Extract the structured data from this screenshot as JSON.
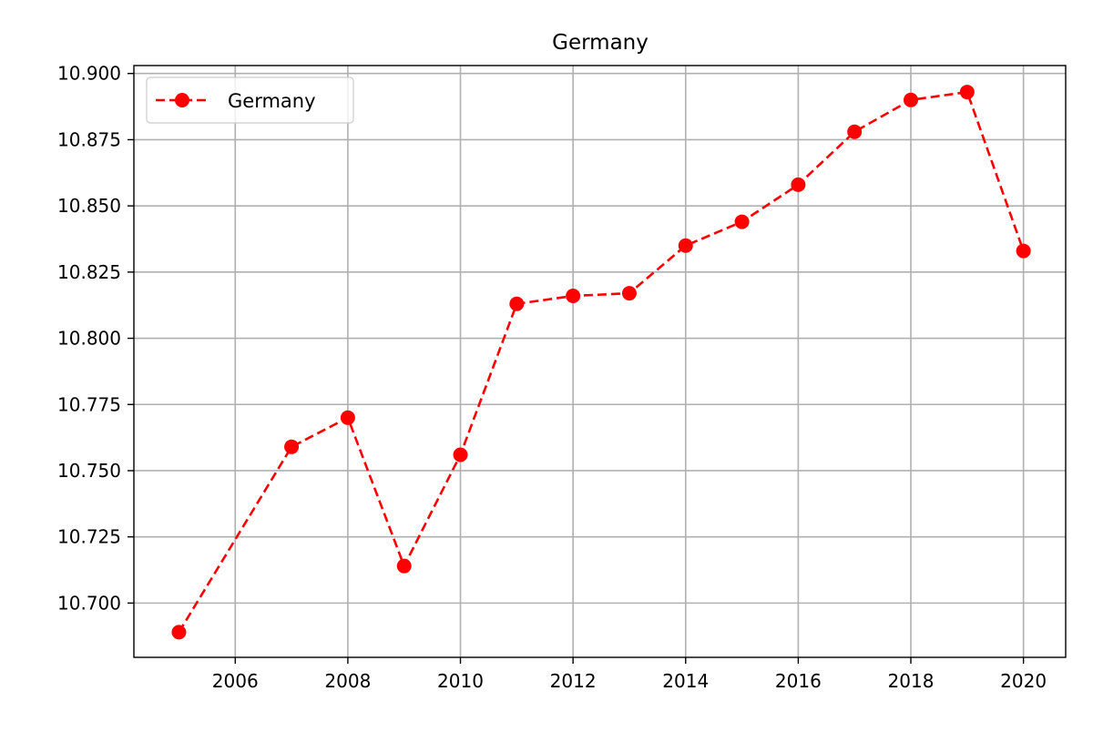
{
  "chart_data": {
    "type": "line",
    "title": "Germany",
    "xlabel": "",
    "ylabel": "",
    "x": [
      2005,
      2007,
      2008,
      2009,
      2010,
      2011,
      2012,
      2013,
      2014,
      2015,
      2016,
      2017,
      2018,
      2019,
      2020
    ],
    "series": [
      {
        "name": "Germany",
        "color": "#ff0000",
        "line_style": "dashed",
        "marker": "circle",
        "values": [
          10.689,
          10.759,
          10.77,
          10.714,
          10.756,
          10.813,
          10.816,
          10.817,
          10.835,
          10.844,
          10.858,
          10.878,
          10.89,
          10.893,
          10.833
        ]
      }
    ],
    "xlim": [
      2004.2,
      2020.75
    ],
    "ylim": [
      10.6795,
      10.903
    ],
    "x_ticks": [
      "2006",
      "2008",
      "2010",
      "2012",
      "2014",
      "2016",
      "2018",
      "2020"
    ],
    "y_ticks": [
      "10.700",
      "10.725",
      "10.750",
      "10.775",
      "10.800",
      "10.825",
      "10.850",
      "10.875",
      "10.900"
    ],
    "grid": true,
    "legend": "top-left"
  }
}
